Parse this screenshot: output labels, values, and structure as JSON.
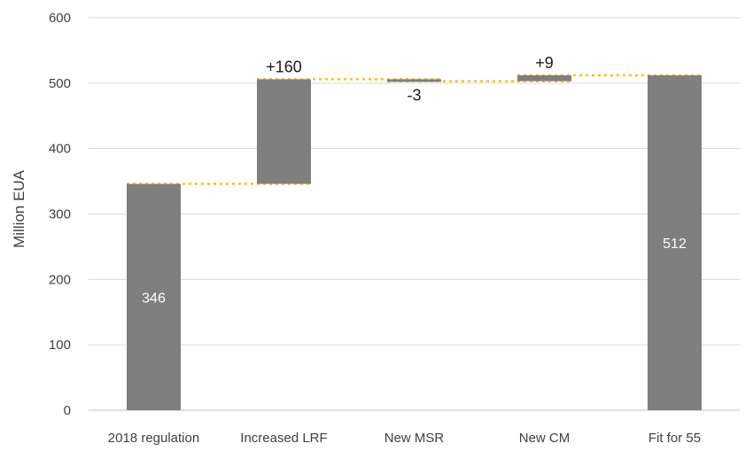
{
  "chart_data": {
    "type": "bar",
    "subtype": "waterfall",
    "title": "",
    "xlabel": "",
    "ylabel": "Million EUA",
    "ylim": [
      0,
      600
    ],
    "yticks": [
      "0",
      "100",
      "200",
      "300",
      "400",
      "500",
      "600"
    ],
    "grid": "horizontal",
    "legend": "none",
    "categories": [
      "2018 regulation",
      "Increased LRF",
      "New MSR",
      "New CM",
      "Fit for 55"
    ],
    "bars": [
      {
        "category": "2018 regulation",
        "kind": "total",
        "start": 0,
        "end": 346,
        "label": "346",
        "label_position": "inside"
      },
      {
        "category": "Increased LRF",
        "kind": "change",
        "start": 346,
        "end": 506,
        "label": "+160",
        "label_position": "above"
      },
      {
        "category": "New MSR",
        "kind": "change",
        "start": 506,
        "end": 503,
        "label": "-3",
        "label_position": "below"
      },
      {
        "category": "New CM",
        "kind": "change",
        "start": 503,
        "end": 512,
        "label": "+9",
        "label_position": "above"
      },
      {
        "category": "Fit for 55",
        "kind": "total",
        "start": 0,
        "end": 512,
        "label": "512",
        "label_position": "inside"
      }
    ],
    "colors": {
      "bar": "#7f7f7f",
      "connector": "#ffc000",
      "grid": "#d9d9d9",
      "axis": "#bfbfbf",
      "text": "#404040"
    }
  }
}
